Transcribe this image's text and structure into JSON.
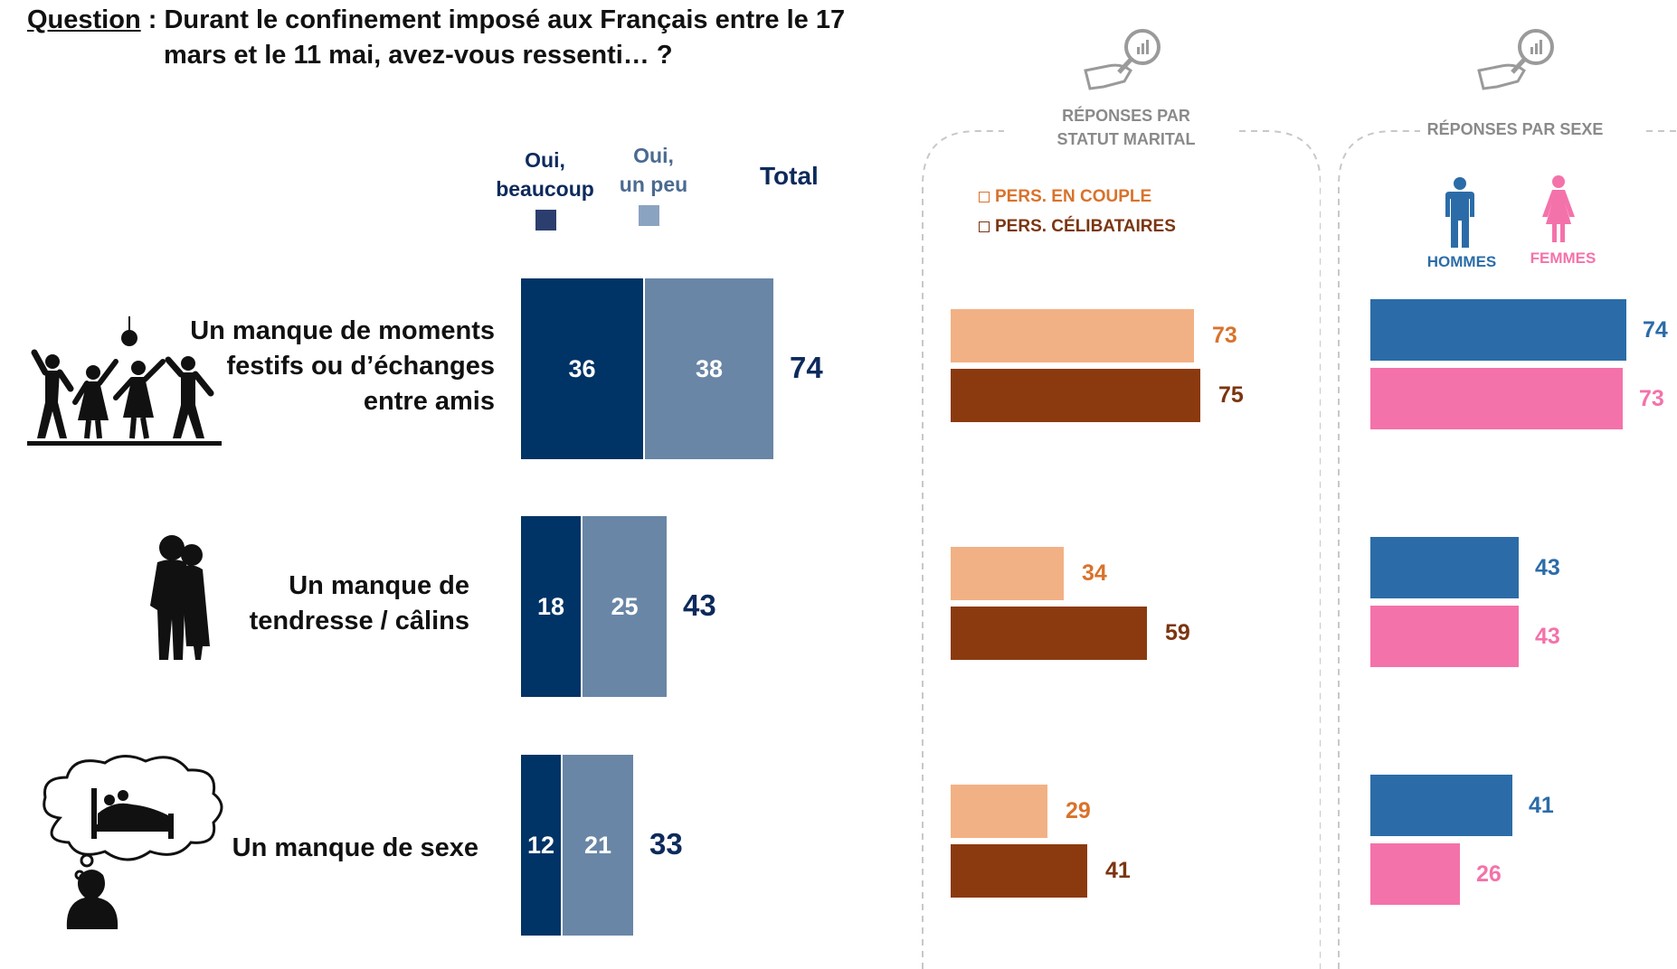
{
  "question": {
    "label": "Question",
    "line1": " : Durant le confinement imposé aux Français entre le 17",
    "line2": "mars et le 11 mai, avez-vous ressenti… ?"
  },
  "legend": {
    "beaucoup": "Oui,\nbeaucoup",
    "peu": "Oui,\nun peu",
    "total": "Total"
  },
  "panels": {
    "marital": {
      "title": "RÉPONSES PAR\nSTATUT MARITAL",
      "legend": [
        "PERS. EN COUPLE",
        "PERS. CÉLIBATAIRES"
      ]
    },
    "sexe": {
      "title": "RÉPONSES PAR SEXE",
      "men": "HOMMES",
      "women": "FEMMES"
    }
  },
  "icons": [
    "dancing-people-icon",
    "couple-hug-icon",
    "dream-bed-icon",
    "hand-magnifier-chart-icon",
    "man-icon",
    "woman-icon"
  ],
  "colors": {
    "beaucoup": "#003366",
    "peu": "#6986a6",
    "couple": "#f2b185",
    "celibataire": "#8b3a0f",
    "couple_text": "#d9722b",
    "celibataire_text": "#7b3510",
    "hommes": "#2b6ca8",
    "femmes": "#f472aa",
    "total": "#0d2a5c"
  },
  "chart_data": [
    {
      "type": "bar",
      "stacked": true,
      "orientation": "horizontal",
      "categories": [
        "Un manque de moments\nfestifs ou d’échanges\nentre amis",
        "Un manque de\ntendresse / câlins",
        "Un manque de sexe"
      ],
      "series": [
        {
          "name": "Oui, beaucoup",
          "values": [
            36,
            18,
            12
          ]
        },
        {
          "name": "Oui, un peu",
          "values": [
            38,
            25,
            21
          ]
        }
      ],
      "totals": [
        74,
        43,
        33
      ]
    },
    {
      "type": "bar",
      "orientation": "horizontal",
      "title": "RÉPONSES PAR STATUT MARITAL",
      "series": [
        {
          "name": "PERS. EN COUPLE",
          "values": [
            73,
            34,
            29
          ]
        },
        {
          "name": "PERS. CÉLIBATAIRES",
          "values": [
            75,
            59,
            41
          ]
        }
      ]
    },
    {
      "type": "bar",
      "orientation": "horizontal",
      "title": "RÉPONSES PAR SEXE",
      "series": [
        {
          "name": "HOMMES",
          "values": [
            74,
            43,
            41
          ]
        },
        {
          "name": "FEMMES",
          "values": [
            73,
            43,
            26
          ]
        }
      ]
    }
  ]
}
